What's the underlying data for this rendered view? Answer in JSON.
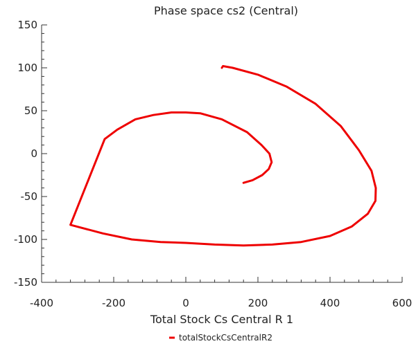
{
  "chart_data": {
    "type": "line",
    "title": "Phase space cs2 (Central)",
    "xlabel": "Total Stock Cs Central R 1",
    "ylabel": "",
    "xlim": [
      -400,
      600
    ],
    "ylim": [
      -150,
      150
    ],
    "x_ticks": [
      -400,
      -200,
      0,
      200,
      400,
      600
    ],
    "y_ticks": [
      150,
      100,
      50,
      0,
      -50,
      -100,
      -150
    ],
    "grid": false,
    "legend_position": "bottom-center",
    "series": [
      {
        "name": "totalStockCsCentralR2",
        "color": "#ee0000",
        "x": [
          100,
          103,
          130,
          200,
          280,
          360,
          430,
          480,
          515,
          527,
          526,
          505,
          460,
          400,
          320,
          240,
          160,
          80,
          0,
          -70,
          -150,
          -230,
          -320,
          -225,
          -190,
          -140,
          -90,
          -40,
          0,
          40,
          100,
          170,
          210,
          232,
          238,
          230,
          212,
          185,
          160
        ],
        "y": [
          100,
          102,
          100,
          92,
          78,
          58,
          32,
          4,
          -20,
          -40,
          -55,
          -70,
          -85,
          -96,
          -103,
          -106,
          -107,
          -106,
          -104,
          -103,
          -100,
          -93,
          -83,
          17,
          28,
          40,
          45,
          48,
          48,
          47,
          40,
          25,
          10,
          0,
          -10,
          -18,
          -25,
          -31,
          -34
        ]
      }
    ]
  }
}
